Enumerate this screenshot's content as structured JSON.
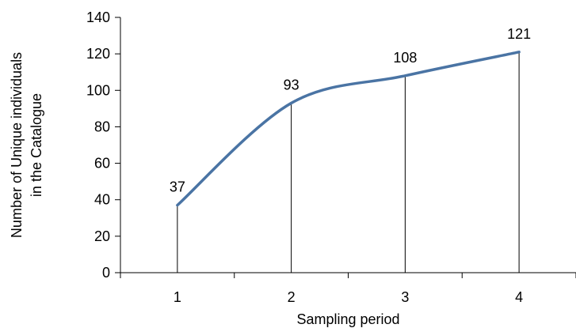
{
  "chart_data": {
    "type": "line",
    "title": "",
    "xlabel": "Sampling period",
    "ylabel_lines": [
      "Number of Unique individuals",
      "in the Catalogue"
    ],
    "categories": [
      "1",
      "2",
      "3",
      "4"
    ],
    "series": [
      {
        "values": [
          37,
          93,
          108,
          121
        ],
        "color": "#4a74a4"
      }
    ],
    "data_labels": [
      "37",
      "93",
      "108",
      "121"
    ],
    "ylim": [
      0,
      140
    ],
    "yticks": [
      0,
      20,
      40,
      60,
      80,
      100,
      120,
      140
    ],
    "ytick_labels": [
      "0",
      "20",
      "40",
      "60",
      "80",
      "100",
      "120",
      "140"
    ],
    "grid": false,
    "smooth": true,
    "drop_lines": true,
    "legend": "none"
  }
}
